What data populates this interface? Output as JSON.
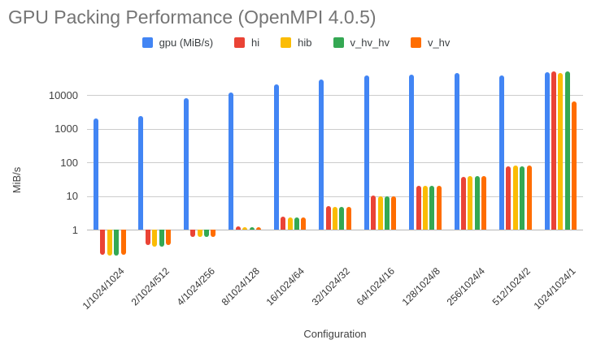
{
  "chart_data": {
    "type": "bar",
    "title": "GPU Packing Performance (OpenMPI 4.0.5)",
    "xlabel": "Configuration",
    "ylabel": "MiB/s",
    "y_scale": "log",
    "baseline": 1,
    "ylim": [
      0.13,
      59000
    ],
    "y_ticks": [
      10000,
      1000,
      100,
      10,
      1
    ],
    "grid": true,
    "legend_position": "top",
    "grid_color": "#cccccc",
    "baseline_color": "#b7b7b7",
    "title_color": "#757575",
    "categories": [
      "1/1024/1024",
      "2/1024/512",
      "4/1024/256",
      "8/1024/128",
      "16/1024/64",
      "32/1024/32",
      "64/1024/16",
      "128/1024/8",
      "256/1024/4",
      "512/1024/2",
      "1024/1024/1"
    ],
    "series": [
      {
        "name": "gpu (MiB/s)",
        "color": "#4285F4",
        "values": [
          2100,
          2450,
          8000,
          12300,
          21000,
          30000,
          38000,
          41000,
          45500,
          40000,
          49500
        ]
      },
      {
        "name": "hi",
        "color": "#EA4335",
        "values": [
          0.18,
          0.35,
          0.62,
          1.25,
          2.4,
          4.9,
          10.3,
          20.5,
          37,
          75,
          52500
        ]
      },
      {
        "name": "hib",
        "color": "#FBBC04",
        "values": [
          0.17,
          0.32,
          0.6,
          1.2,
          2.3,
          4.7,
          9.8,
          20,
          40,
          83,
          47000
        ]
      },
      {
        "name": "v_hv_hv",
        "color": "#34A853",
        "values": [
          0.17,
          0.32,
          0.6,
          1.2,
          2.3,
          4.7,
          9.8,
          20,
          40,
          76,
          51500
        ]
      },
      {
        "name": "v_hv",
        "color": "#FF6D00",
        "values": [
          0.18,
          0.34,
          0.62,
          1.2,
          2.35,
          4.7,
          10,
          20.5,
          40,
          81,
          6400
        ]
      }
    ]
  }
}
